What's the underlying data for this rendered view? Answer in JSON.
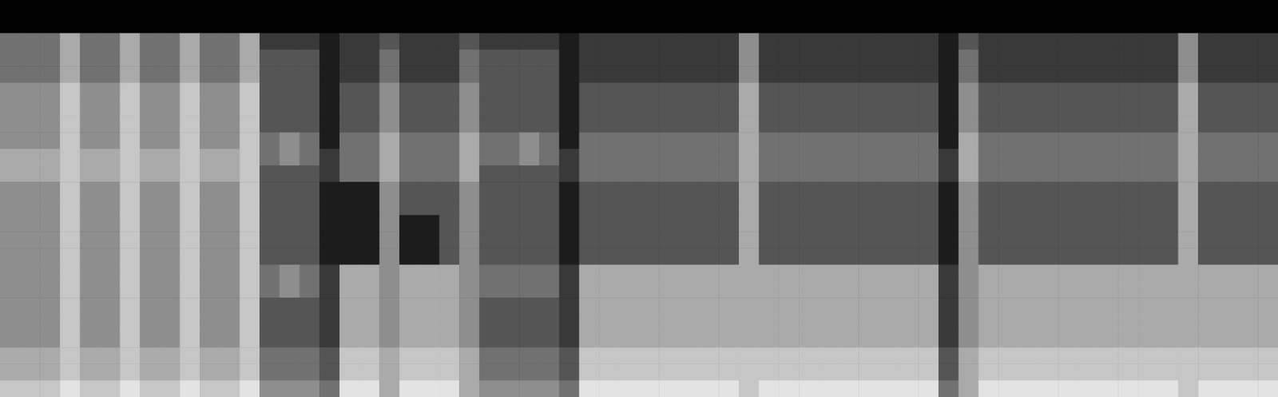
{
  "chart_data": {
    "type": "heatmap",
    "tick_labels": false,
    "grid": false,
    "zlim": [
      0,
      9
    ],
    "cells": [
      [
        0,
        0,
        0,
        0,
        0,
        0,
        0,
        0,
        0,
        0,
        0,
        0,
        0,
        0,
        0,
        0,
        0,
        0,
        0,
        0,
        0,
        0,
        0,
        0,
        0,
        0,
        0,
        0,
        0,
        0,
        0,
        0,
        0,
        0,
        0,
        0,
        0,
        0,
        0,
        0,
        0,
        0,
        0,
        0,
        0,
        0,
        0,
        0,
        0,
        0,
        0,
        0,
        0,
        0,
        0,
        0,
        0,
        0,
        0,
        0,
        0,
        0,
        0,
        0
      ],
      [
        0,
        0,
        0,
        0,
        0,
        0,
        0,
        0,
        0,
        0,
        0,
        0,
        0,
        0,
        0,
        0,
        0,
        0,
        0,
        0,
        0,
        0,
        0,
        0,
        0,
        0,
        0,
        0,
        0,
        0,
        0,
        0,
        0,
        0,
        0,
        0,
        0,
        0,
        0,
        0,
        0,
        0,
        0,
        0,
        0,
        0,
        0,
        0,
        0,
        0,
        0,
        0,
        0,
        0,
        0,
        0,
        0,
        0,
        0,
        0,
        0,
        0,
        0,
        0
      ],
      [
        4,
        4,
        4,
        6,
        4,
        4,
        6,
        4,
        4,
        6,
        4,
        4,
        6,
        2,
        2,
        2,
        1,
        2,
        2,
        3,
        2,
        2,
        2,
        3,
        2,
        2,
        2,
        2,
        1,
        2,
        2,
        2,
        2,
        2,
        2,
        2,
        2,
        5,
        2,
        2,
        2,
        2,
        2,
        2,
        2,
        2,
        2,
        1,
        3,
        2,
        2,
        2,
        2,
        2,
        2,
        2,
        2,
        2,
        2,
        5,
        2,
        2,
        2,
        2
      ],
      [
        4,
        4,
        4,
        6,
        4,
        4,
        6,
        4,
        4,
        6,
        4,
        4,
        6,
        3,
        3,
        3,
        1,
        2,
        2,
        4,
        2,
        2,
        2,
        4,
        3,
        3,
        3,
        3,
        1,
        2,
        2,
        2,
        2,
        2,
        2,
        2,
        2,
        5,
        2,
        2,
        2,
        2,
        2,
        2,
        2,
        2,
        2,
        1,
        4,
        2,
        2,
        2,
        2,
        2,
        2,
        2,
        2,
        2,
        2,
        5,
        2,
        2,
        2,
        2
      ],
      [
        4,
        4,
        4,
        6,
        4,
        4,
        6,
        4,
        4,
        6,
        4,
        4,
        6,
        3,
        3,
        3,
        1,
        2,
        2,
        4,
        2,
        2,
        2,
        4,
        3,
        3,
        3,
        3,
        1,
        2,
        2,
        2,
        2,
        2,
        2,
        2,
        2,
        5,
        2,
        2,
        2,
        2,
        2,
        2,
        2,
        2,
        2,
        1,
        4,
        2,
        2,
        2,
        2,
        2,
        2,
        2,
        2,
        2,
        2,
        5,
        2,
        2,
        2,
        2
      ],
      [
        5,
        5,
        5,
        7,
        5,
        5,
        7,
        5,
        5,
        7,
        5,
        5,
        7,
        3,
        3,
        3,
        1,
        3,
        3,
        5,
        3,
        3,
        3,
        5,
        3,
        3,
        3,
        3,
        1,
        3,
        3,
        3,
        3,
        3,
        3,
        3,
        3,
        6,
        3,
        3,
        3,
        3,
        3,
        3,
        3,
        3,
        3,
        1,
        5,
        3,
        3,
        3,
        3,
        3,
        3,
        3,
        3,
        3,
        3,
        6,
        3,
        3,
        3,
        3
      ],
      [
        5,
        5,
        5,
        7,
        5,
        5,
        7,
        5,
        5,
        7,
        5,
        5,
        7,
        3,
        3,
        3,
        1,
        3,
        3,
        5,
        3,
        3,
        3,
        5,
        3,
        3,
        3,
        3,
        1,
        3,
        3,
        3,
        3,
        3,
        3,
        3,
        3,
        6,
        3,
        3,
        3,
        3,
        3,
        3,
        3,
        3,
        3,
        1,
        5,
        3,
        3,
        3,
        3,
        3,
        3,
        3,
        3,
        3,
        3,
        6,
        3,
        3,
        3,
        3
      ],
      [
        5,
        5,
        5,
        7,
        5,
        5,
        7,
        5,
        5,
        7,
        5,
        5,
        7,
        3,
        3,
        3,
        1,
        3,
        3,
        5,
        3,
        3,
        3,
        5,
        3,
        3,
        3,
        3,
        1,
        3,
        3,
        3,
        3,
        3,
        3,
        3,
        3,
        6,
        3,
        3,
        3,
        3,
        3,
        3,
        3,
        3,
        3,
        1,
        5,
        3,
        3,
        3,
        3,
        3,
        3,
        3,
        3,
        3,
        3,
        6,
        3,
        3,
        3,
        3
      ],
      [
        5,
        5,
        5,
        7,
        5,
        5,
        7,
        5,
        5,
        7,
        5,
        5,
        7,
        4,
        5,
        4,
        1,
        4,
        4,
        6,
        4,
        4,
        4,
        6,
        4,
        4,
        5,
        4,
        1,
        4,
        4,
        4,
        4,
        4,
        4,
        4,
        4,
        6,
        4,
        4,
        4,
        4,
        4,
        4,
        4,
        4,
        4,
        1,
        6,
        4,
        4,
        4,
        4,
        4,
        4,
        4,
        4,
        4,
        4,
        6,
        4,
        4,
        4,
        4
      ],
      [
        6,
        6,
        6,
        7,
        6,
        6,
        7,
        6,
        6,
        7,
        6,
        6,
        7,
        4,
        5,
        4,
        2,
        4,
        4,
        6,
        4,
        4,
        4,
        6,
        4,
        4,
        5,
        4,
        2,
        4,
        4,
        4,
        4,
        4,
        4,
        4,
        4,
        6,
        4,
        4,
        4,
        4,
        4,
        4,
        4,
        4,
        4,
        2,
        6,
        4,
        4,
        4,
        4,
        4,
        4,
        4,
        4,
        4,
        4,
        6,
        4,
        4,
        4,
        4
      ],
      [
        6,
        6,
        6,
        7,
        6,
        6,
        7,
        6,
        6,
        7,
        6,
        6,
        7,
        3,
        3,
        3,
        2,
        4,
        4,
        6,
        4,
        4,
        4,
        6,
        3,
        3,
        3,
        3,
        2,
        4,
        4,
        4,
        4,
        4,
        4,
        4,
        4,
        6,
        4,
        4,
        4,
        4,
        4,
        4,
        4,
        4,
        4,
        2,
        6,
        4,
        4,
        4,
        4,
        4,
        4,
        4,
        4,
        4,
        4,
        6,
        4,
        4,
        4,
        4
      ],
      [
        5,
        5,
        5,
        7,
        5,
        5,
        7,
        5,
        5,
        7,
        5,
        5,
        7,
        3,
        3,
        3,
        1,
        1,
        1,
        5,
        3,
        3,
        3,
        5,
        3,
        3,
        3,
        3,
        1,
        3,
        3,
        3,
        3,
        3,
        3,
        3,
        3,
        6,
        3,
        3,
        3,
        3,
        3,
        3,
        3,
        3,
        3,
        1,
        5,
        3,
        3,
        3,
        3,
        3,
        3,
        3,
        3,
        3,
        3,
        6,
        3,
        3,
        3,
        3
      ],
      [
        5,
        5,
        5,
        7,
        5,
        5,
        7,
        5,
        5,
        7,
        5,
        5,
        7,
        3,
        3,
        3,
        1,
        1,
        1,
        5,
        3,
        3,
        3,
        5,
        3,
        3,
        3,
        3,
        1,
        3,
        3,
        3,
        3,
        3,
        3,
        3,
        3,
        6,
        3,
        3,
        3,
        3,
        3,
        3,
        3,
        3,
        3,
        1,
        5,
        3,
        3,
        3,
        3,
        3,
        3,
        3,
        3,
        3,
        3,
        6,
        3,
        3,
        3,
        3
      ],
      [
        5,
        5,
        5,
        7,
        5,
        5,
        7,
        5,
        5,
        7,
        5,
        5,
        7,
        3,
        3,
        3,
        1,
        1,
        1,
        5,
        1,
        1,
        3,
        5,
        3,
        3,
        3,
        3,
        1,
        3,
        3,
        3,
        3,
        3,
        3,
        3,
        3,
        6,
        3,
        3,
        3,
        3,
        3,
        3,
        3,
        3,
        3,
        1,
        5,
        3,
        3,
        3,
        3,
        3,
        3,
        3,
        3,
        3,
        3,
        6,
        3,
        3,
        3,
        3
      ],
      [
        5,
        5,
        5,
        7,
        5,
        5,
        7,
        5,
        5,
        7,
        5,
        5,
        7,
        3,
        3,
        3,
        1,
        1,
        1,
        5,
        1,
        1,
        3,
        5,
        3,
        3,
        3,
        3,
        1,
        3,
        3,
        3,
        3,
        3,
        3,
        3,
        3,
        6,
        3,
        3,
        3,
        3,
        3,
        3,
        3,
        3,
        3,
        1,
        5,
        3,
        3,
        3,
        3,
        3,
        3,
        3,
        3,
        3,
        3,
        6,
        3,
        3,
        3,
        3
      ],
      [
        5,
        5,
        5,
        7,
        5,
        5,
        7,
        5,
        5,
        7,
        5,
        5,
        7,
        3,
        3,
        3,
        1,
        1,
        1,
        5,
        1,
        1,
        3,
        5,
        3,
        3,
        3,
        3,
        1,
        3,
        3,
        3,
        3,
        3,
        3,
        3,
        3,
        6,
        3,
        3,
        3,
        3,
        3,
        3,
        3,
        3,
        3,
        1,
        5,
        3,
        3,
        3,
        3,
        3,
        3,
        3,
        3,
        3,
        3,
        6,
        3,
        3,
        3,
        3
      ],
      [
        5,
        5,
        5,
        7,
        5,
        5,
        7,
        5,
        5,
        7,
        5,
        5,
        7,
        4,
        5,
        4,
        2,
        6,
        6,
        5,
        6,
        6,
        6,
        5,
        4,
        4,
        4,
        4,
        2,
        6,
        6,
        6,
        6,
        6,
        6,
        6,
        6,
        6,
        6,
        6,
        6,
        6,
        6,
        6,
        6,
        6,
        6,
        2,
        5,
        6,
        6,
        6,
        6,
        6,
        6,
        6,
        6,
        6,
        6,
        6,
        6,
        6,
        6,
        6
      ],
      [
        5,
        5,
        5,
        7,
        5,
        5,
        7,
        5,
        5,
        7,
        5,
        5,
        7,
        4,
        5,
        4,
        2,
        6,
        6,
        5,
        6,
        6,
        6,
        5,
        4,
        4,
        4,
        4,
        2,
        6,
        6,
        6,
        6,
        6,
        6,
        6,
        6,
        6,
        6,
        6,
        6,
        6,
        6,
        6,
        6,
        6,
        6,
        2,
        5,
        6,
        6,
        6,
        6,
        6,
        6,
        6,
        6,
        6,
        6,
        6,
        6,
        6,
        6,
        6
      ],
      [
        5,
        5,
        5,
        7,
        5,
        5,
        7,
        5,
        5,
        7,
        5,
        5,
        7,
        3,
        3,
        3,
        2,
        6,
        6,
        5,
        6,
        6,
        6,
        5,
        3,
        3,
        3,
        3,
        2,
        6,
        6,
        6,
        6,
        6,
        6,
        6,
        6,
        6,
        6,
        6,
        6,
        6,
        6,
        6,
        6,
        6,
        6,
        2,
        5,
        6,
        6,
        6,
        6,
        6,
        6,
        6,
        6,
        6,
        6,
        6,
        6,
        6,
        6,
        6
      ],
      [
        5,
        5,
        5,
        7,
        5,
        5,
        7,
        5,
        5,
        7,
        5,
        5,
        7,
        3,
        3,
        3,
        2,
        6,
        6,
        5,
        6,
        6,
        6,
        5,
        3,
        3,
        3,
        3,
        2,
        6,
        6,
        6,
        6,
        6,
        6,
        6,
        6,
        6,
        6,
        6,
        6,
        6,
        6,
        6,
        6,
        6,
        6,
        2,
        5,
        6,
        6,
        6,
        6,
        6,
        6,
        6,
        6,
        6,
        6,
        6,
        6,
        6,
        6,
        6
      ],
      [
        5,
        5,
        5,
        7,
        5,
        5,
        7,
        5,
        5,
        7,
        5,
        5,
        7,
        3,
        3,
        3,
        2,
        6,
        6,
        5,
        6,
        6,
        6,
        5,
        3,
        3,
        3,
        3,
        2,
        6,
        6,
        6,
        6,
        6,
        6,
        6,
        6,
        6,
        6,
        6,
        6,
        6,
        6,
        6,
        6,
        6,
        6,
        2,
        5,
        6,
        6,
        6,
        6,
        6,
        6,
        6,
        6,
        6,
        6,
        6,
        6,
        6,
        6,
        6
      ],
      [
        6,
        6,
        6,
        7,
        6,
        6,
        7,
        6,
        6,
        7,
        6,
        6,
        7,
        4,
        4,
        4,
        3,
        7,
        7,
        6,
        7,
        7,
        7,
        6,
        4,
        4,
        4,
        4,
        3,
        7,
        7,
        7,
        7,
        7,
        7,
        7,
        7,
        7,
        7,
        7,
        7,
        7,
        7,
        7,
        7,
        7,
        7,
        3,
        6,
        7,
        7,
        7,
        7,
        7,
        7,
        7,
        7,
        7,
        7,
        7,
        7,
        7,
        7,
        7
      ],
      [
        6,
        6,
        6,
        7,
        6,
        6,
        7,
        6,
        6,
        7,
        6,
        6,
        7,
        4,
        4,
        4,
        3,
        7,
        7,
        6,
        7,
        7,
        7,
        6,
        4,
        4,
        4,
        4,
        3,
        7,
        7,
        7,
        7,
        7,
        7,
        7,
        7,
        7,
        7,
        7,
        7,
        7,
        7,
        7,
        7,
        7,
        7,
        3,
        6,
        7,
        7,
        7,
        7,
        7,
        7,
        7,
        7,
        7,
        7,
        7,
        7,
        7,
        7,
        7
      ],
      [
        7,
        7,
        7,
        8,
        7,
        7,
        8,
        7,
        7,
        8,
        7,
        7,
        8,
        5,
        5,
        5,
        4,
        8,
        8,
        6,
        8,
        8,
        8,
        6,
        5,
        5,
        5,
        5,
        4,
        8,
        8,
        8,
        8,
        8,
        8,
        8,
        8,
        7,
        8,
        8,
        8,
        8,
        8,
        8,
        8,
        8,
        8,
        4,
        6,
        8,
        8,
        8,
        8,
        8,
        8,
        8,
        8,
        8,
        8,
        7,
        8,
        8,
        8,
        8
      ]
    ]
  }
}
